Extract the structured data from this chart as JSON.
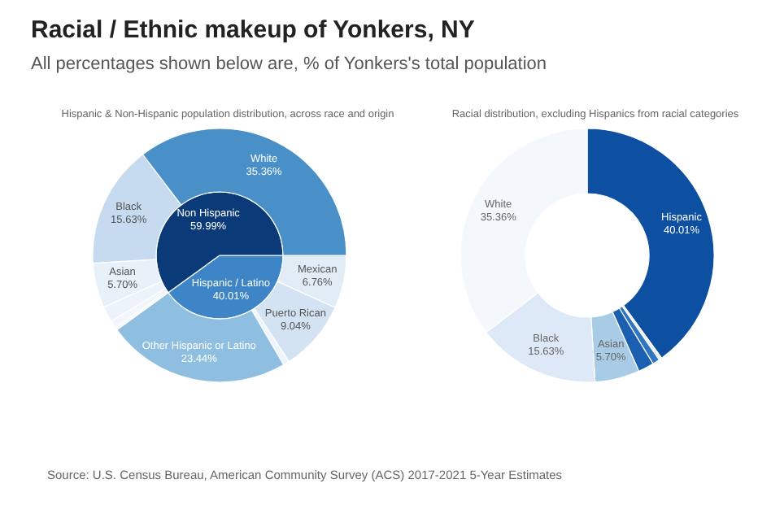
{
  "chart_data": [
    {
      "type": "pie",
      "title": "Racial / Ethnic makeup of Yonkers, NY",
      "subtitle": "All percentages shown below are, % of Yonkers's total population",
      "annotations": [
        "Hispanic & Non-Hispanic population distribution, across race and origin",
        "Source: U.S. Census Bureau, American Community Survey (ACS) 2017-2021 5-Year Estimates"
      ],
      "categories": [
        "Hispanic / Latino",
        "Non Hispanic"
      ],
      "values": [
        40.01,
        59.99
      ],
      "colors": [
        "#3d85c6",
        "#0b3a78"
      ],
      "value_labels": [
        "40.01%",
        "59.99%"
      ]
    },
    {
      "type": "donut",
      "categories": [
        "Mexican",
        "Puerto Rican",
        null,
        "Other Hispanic or Latino",
        null,
        null,
        null,
        "Asian",
        "Black",
        "White"
      ],
      "values": [
        6.76,
        9.04,
        0.77,
        23.44,
        0.4,
        0.9,
        2.0,
        5.7,
        15.63,
        35.36
      ],
      "colors": [
        "#e2ecf7",
        "#d3e3f3",
        "#eef4fb",
        "#8fbfe0",
        "#f6f9fd",
        "#f1f6fc",
        "#ecf3fa",
        "#e8f0f9",
        "#c6dbef",
        "#4a90c8"
      ],
      "value_labels": [
        "6.76%",
        "9.04%",
        null,
        "23.44%",
        null,
        null,
        null,
        "5.70%",
        "15.63%",
        "35.36%"
      ]
    },
    {
      "type": "donut",
      "title": "Racial distribution, excluding Hispanics from racial categories",
      "categories": [
        "Hispanic",
        null,
        null,
        null,
        "Asian",
        "Black",
        "White"
      ],
      "values": [
        40.01,
        0.4,
        0.9,
        2.0,
        5.7,
        15.63,
        35.36
      ],
      "colors": [
        "#0d4fa0",
        "#e6eff9",
        "#2f75c0",
        "#1b5fb0",
        "#a8cce6",
        "#dde9f6",
        "#f4f8fd"
      ],
      "value_labels": [
        "40.01%",
        null,
        null,
        null,
        "5.70%",
        "15.63%",
        "35.36%"
      ]
    }
  ]
}
